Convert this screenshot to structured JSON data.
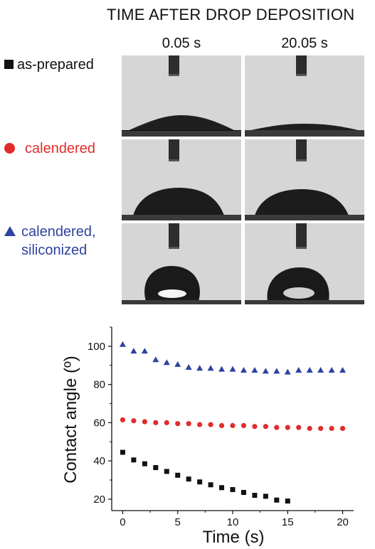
{
  "header": {
    "title": "TIME AFTER DROP DEPOSITION",
    "columns": [
      "0.05 s",
      "20.05 s"
    ]
  },
  "samples": [
    {
      "label": "as-prepared",
      "marker": "square-icon",
      "color": "#111111"
    },
    {
      "label": "calendered",
      "marker": "circle-icon",
      "color": "#e32b2b"
    },
    {
      "label_line1": "calendered,",
      "label_line2": "siliconized",
      "marker": "triangle-icon",
      "color": "#2f42a0"
    }
  ],
  "chart_data": {
    "type": "scatter",
    "xlabel": "Time (s)",
    "ylabel": "Contact angle (º)",
    "xlim": [
      -1,
      21
    ],
    "ylim": [
      14,
      110
    ],
    "xticks": [
      0,
      5,
      10,
      15,
      20
    ],
    "yticks": [
      20,
      40,
      60,
      80,
      100
    ],
    "grid": false,
    "series": [
      {
        "name": "as-prepared",
        "marker": "square",
        "color": "#111111",
        "x": [
          0,
          1,
          2,
          3,
          4,
          5,
          6,
          7,
          8,
          9,
          10,
          11,
          12,
          13,
          14,
          15
        ],
        "y": [
          44.5,
          40.5,
          38.5,
          36.5,
          34.5,
          32.5,
          30.5,
          29,
          27.5,
          26,
          25,
          23.5,
          22,
          21.5,
          19.5,
          19
        ]
      },
      {
        "name": "calendered",
        "marker": "circle",
        "color": "#e32b2b",
        "x": [
          0,
          1,
          2,
          3,
          4,
          5,
          6,
          7,
          8,
          9,
          10,
          11,
          12,
          13,
          14,
          15,
          16,
          17,
          18,
          19,
          20
        ],
        "y": [
          61.5,
          61,
          60.5,
          60,
          60,
          59.5,
          59.5,
          59,
          59,
          58.5,
          58.5,
          58.5,
          58,
          58,
          57.5,
          57.5,
          57.5,
          57,
          57,
          57,
          57
        ]
      },
      {
        "name": "calendered, siliconized",
        "marker": "triangle",
        "color": "#2f42a0",
        "x": [
          0,
          1,
          2,
          3,
          4,
          5,
          6,
          7,
          8,
          9,
          10,
          11,
          12,
          13,
          14,
          15,
          16,
          17,
          18,
          19,
          20
        ],
        "y": [
          101,
          97.5,
          97.5,
          93,
          91.5,
          90.5,
          89,
          88.5,
          88.5,
          88,
          88,
          87.5,
          87.5,
          87,
          87,
          86.5,
          87.5,
          87.5,
          87.5,
          87.5,
          87.5
        ]
      }
    ]
  }
}
